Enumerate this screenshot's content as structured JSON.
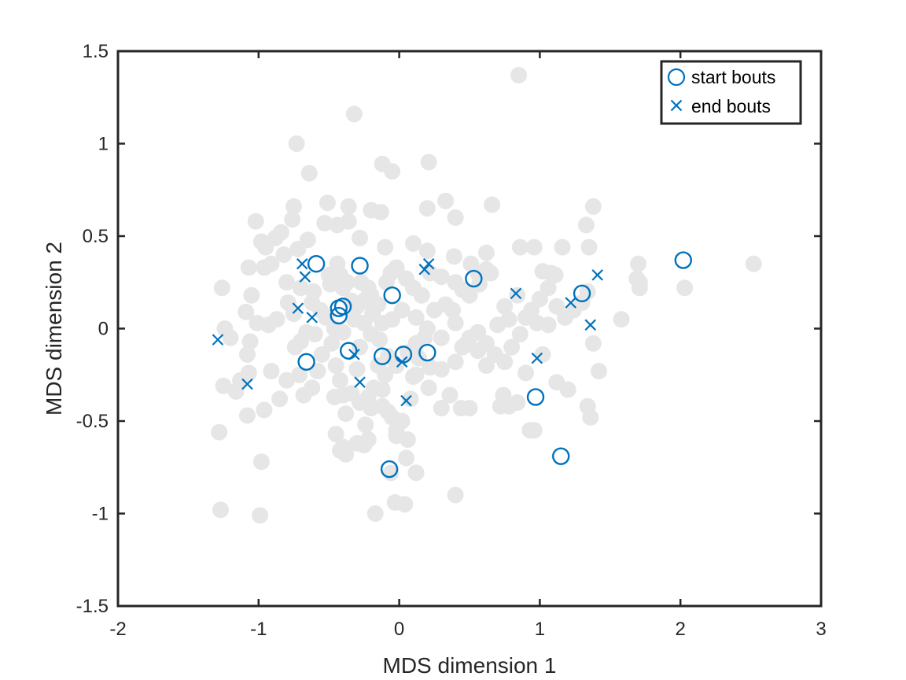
{
  "chart_data": {
    "type": "scatter",
    "title": "",
    "xlabel": "MDS dimension 1",
    "ylabel": "MDS dimension 2",
    "xlim": [
      -2,
      3
    ],
    "ylim": [
      -1.5,
      1.5
    ],
    "x_ticks": [
      "-2",
      "-1",
      "0",
      "1",
      "2",
      "3"
    ],
    "y_ticks": [
      "-1.5",
      "-1",
      "-0.5",
      "0",
      "0.5",
      "1",
      "1.5"
    ],
    "grid": false,
    "legend_position": "top-right",
    "colors": {
      "background_points": "#e6e6e6",
      "highlight": "#0072bd",
      "axes": "#262626"
    },
    "series": [
      {
        "role": "background",
        "marker": "filled-circle",
        "points": [
          [
            0.85,
            1.37
          ],
          [
            -0.32,
            1.16
          ],
          [
            -0.73,
            1.0
          ],
          [
            -0.64,
            0.84
          ],
          [
            -0.12,
            0.89
          ],
          [
            -0.05,
            0.85
          ],
          [
            0.21,
            0.9
          ],
          [
            -0.51,
            0.68
          ],
          [
            -0.36,
            0.66
          ],
          [
            -0.2,
            0.64
          ],
          [
            -0.13,
            0.63
          ],
          [
            -0.75,
            0.66
          ],
          [
            -0.76,
            0.59
          ],
          [
            -1.02,
            0.58
          ],
          [
            0.33,
            0.69
          ],
          [
            0.4,
            0.6
          ],
          [
            0.2,
            0.65
          ],
          [
            0.66,
            0.67
          ],
          [
            1.38,
            0.66
          ],
          [
            1.33,
            0.56
          ],
          [
            -0.44,
            0.56
          ],
          [
            -0.36,
            0.58
          ],
          [
            -0.53,
            0.57
          ],
          [
            -0.65,
            0.48
          ],
          [
            -0.84,
            0.52
          ],
          [
            -0.88,
            0.49
          ],
          [
            -0.98,
            0.47
          ],
          [
            -0.95,
            0.44
          ],
          [
            -0.82,
            0.4
          ],
          [
            -0.72,
            0.43
          ],
          [
            -0.28,
            0.49
          ],
          [
            -0.1,
            0.44
          ],
          [
            0.1,
            0.46
          ],
          [
            0.2,
            0.42
          ],
          [
            0.39,
            0.39
          ],
          [
            0.51,
            0.35
          ],
          [
            0.62,
            0.41
          ],
          [
            0.65,
            0.3
          ],
          [
            0.86,
            0.44
          ],
          [
            0.96,
            0.44
          ],
          [
            1.16,
            0.44
          ],
          [
            1.35,
            0.44
          ],
          [
            1.02,
            0.31
          ],
          [
            1.08,
            0.3
          ],
          [
            1.11,
            0.29
          ],
          [
            1.7,
            0.35
          ],
          [
            1.69,
            0.27
          ],
          [
            1.71,
            0.25
          ],
          [
            1.71,
            0.22
          ],
          [
            2.03,
            0.22
          ],
          [
            2.52,
            0.35
          ],
          [
            1.58,
            0.05
          ],
          [
            -1.26,
            0.22
          ],
          [
            -1.07,
            0.33
          ],
          [
            -0.96,
            0.33
          ],
          [
            -0.91,
            0.35
          ],
          [
            -0.8,
            0.25
          ],
          [
            -0.79,
            0.14
          ],
          [
            -0.75,
            0.08
          ],
          [
            -0.7,
            0.22
          ],
          [
            -0.61,
            0.2
          ],
          [
            -0.5,
            0.29
          ],
          [
            -0.49,
            0.24
          ],
          [
            -0.44,
            0.35
          ],
          [
            -0.42,
            0.29
          ],
          [
            -0.4,
            0.22
          ],
          [
            -0.37,
            0.25
          ],
          [
            -0.34,
            0.15
          ],
          [
            -0.27,
            0.25
          ],
          [
            -0.22,
            0.22
          ],
          [
            -0.2,
            0.18
          ],
          [
            -0.15,
            0.13
          ],
          [
            -0.09,
            0.25
          ],
          [
            -0.06,
            0.3
          ],
          [
            -0.02,
            0.33
          ],
          [
            0.05,
            0.27
          ],
          [
            0.1,
            0.22
          ],
          [
            0.16,
            0.18
          ],
          [
            0.22,
            0.3
          ],
          [
            0.3,
            0.28
          ],
          [
            0.4,
            0.25
          ],
          [
            0.45,
            0.21
          ],
          [
            0.5,
            0.18
          ],
          [
            0.57,
            0.24
          ],
          [
            0.33,
            0.13
          ],
          [
            0.38,
            0.1
          ],
          [
            0.25,
            0.1
          ],
          [
            0.12,
            0.06
          ],
          [
            0.02,
            0.1
          ],
          [
            -0.05,
            0.05
          ],
          [
            -0.12,
            0.03
          ],
          [
            -0.19,
            0.08
          ],
          [
            -0.25,
            0.03
          ],
          [
            -0.32,
            0.05
          ],
          [
            -0.4,
            -0.02
          ],
          [
            -0.46,
            0.0
          ],
          [
            -0.52,
            0.06
          ],
          [
            -0.56,
            0.1
          ],
          [
            -0.62,
            0.14
          ],
          [
            -0.6,
            -0.03
          ],
          [
            -0.66,
            -0.02
          ],
          [
            -0.7,
            -0.07
          ],
          [
            -0.74,
            -0.1
          ],
          [
            -0.87,
            0.05
          ],
          [
            -0.93,
            0.02
          ],
          [
            -1.01,
            0.03
          ],
          [
            -1.09,
            0.09
          ],
          [
            -1.05,
            0.18
          ],
          [
            -1.2,
            -0.05
          ],
          [
            -1.24,
            0.0
          ],
          [
            -1.06,
            -0.07
          ],
          [
            -1.08,
            -0.14
          ],
          [
            -1.07,
            -0.24
          ],
          [
            -1.13,
            -0.28
          ],
          [
            -1.16,
            -0.34
          ],
          [
            -1.08,
            -0.47
          ],
          [
            -0.96,
            -0.44
          ],
          [
            -0.91,
            -0.23
          ],
          [
            -0.71,
            -0.25
          ],
          [
            -0.68,
            -0.36
          ],
          [
            -0.62,
            -0.32
          ],
          [
            -0.58,
            -0.23
          ],
          [
            -0.55,
            -0.14
          ],
          [
            -0.48,
            -0.08
          ],
          [
            -0.45,
            -0.2
          ],
          [
            -0.42,
            -0.28
          ],
          [
            -0.4,
            -0.36
          ],
          [
            -0.46,
            -0.37
          ],
          [
            -0.38,
            -0.46
          ],
          [
            -0.45,
            -0.57
          ],
          [
            -0.4,
            -0.64
          ],
          [
            -0.38,
            -0.68
          ],
          [
            -0.3,
            -0.62
          ],
          [
            -0.24,
            -0.52
          ],
          [
            -0.22,
            -0.6
          ],
          [
            -0.2,
            -0.43
          ],
          [
            -0.18,
            -0.32
          ],
          [
            -0.15,
            -0.2
          ],
          [
            -0.1,
            -0.25
          ],
          [
            -0.12,
            -0.33
          ],
          [
            -0.08,
            -0.45
          ],
          [
            -0.02,
            -0.58
          ],
          [
            0.06,
            -0.6
          ],
          [
            0.02,
            -0.5
          ],
          [
            0.08,
            -0.38
          ],
          [
            0.12,
            -0.25
          ],
          [
            0.14,
            -0.16
          ],
          [
            0.18,
            -0.05
          ],
          [
            0.22,
            -0.21
          ],
          [
            0.21,
            -0.32
          ],
          [
            0.3,
            -0.43
          ],
          [
            0.36,
            -0.36
          ],
          [
            0.44,
            -0.43
          ],
          [
            0.5,
            -0.43
          ],
          [
            0.4,
            -0.18
          ],
          [
            0.45,
            -0.1
          ],
          [
            0.5,
            -0.05
          ],
          [
            0.56,
            -0.02
          ],
          [
            0.62,
            -0.08
          ],
          [
            0.68,
            -0.14
          ],
          [
            0.75,
            -0.18
          ],
          [
            0.8,
            -0.1
          ],
          [
            0.86,
            -0.03
          ],
          [
            0.9,
            0.06
          ],
          [
            0.94,
            0.1
          ],
          [
            1.0,
            0.16
          ],
          [
            1.06,
            0.22
          ],
          [
            1.12,
            0.12
          ],
          [
            1.18,
            0.06
          ],
          [
            1.24,
            0.1
          ],
          [
            1.3,
            0.14
          ],
          [
            1.34,
            0.2
          ],
          [
            1.38,
            -0.08
          ],
          [
            1.42,
            -0.23
          ],
          [
            1.34,
            -0.42
          ],
          [
            1.36,
            -0.48
          ],
          [
            1.2,
            -0.33
          ],
          [
            1.12,
            -0.29
          ],
          [
            1.02,
            -0.14
          ],
          [
            1.06,
            0.02
          ],
          [
            0.98,
            0.03
          ],
          [
            0.9,
            -0.24
          ],
          [
            0.84,
            -0.4
          ],
          [
            0.74,
            -0.36
          ],
          [
            0.72,
            -0.42
          ],
          [
            0.78,
            -0.42
          ],
          [
            0.96,
            -0.55
          ],
          [
            0.93,
            -0.55
          ],
          [
            0.62,
            -0.2
          ],
          [
            0.56,
            -0.12
          ],
          [
            0.48,
            -0.08
          ],
          [
            0.4,
            0.03
          ],
          [
            0.3,
            -0.05
          ],
          [
            0.2,
            0.0
          ],
          [
            0.12,
            -0.08
          ],
          [
            0.06,
            -0.13
          ],
          [
            -0.02,
            -0.2
          ],
          [
            -0.08,
            -0.15
          ],
          [
            -0.14,
            -0.06
          ],
          [
            -0.2,
            -0.03
          ],
          [
            -0.28,
            -0.1
          ],
          [
            -0.3,
            -0.22
          ],
          [
            -0.34,
            -0.35
          ],
          [
            -0.28,
            -0.4
          ],
          [
            -0.22,
            -0.37
          ],
          [
            -0.12,
            -0.42
          ],
          [
            -0.05,
            -0.48
          ],
          [
            -0.02,
            -0.55
          ],
          [
            0.05,
            -0.7
          ],
          [
            0.12,
            -0.78
          ],
          [
            0.4,
            -0.9
          ],
          [
            -0.17,
            -1.0
          ],
          [
            -0.03,
            -0.94
          ],
          [
            0.04,
            -0.95
          ],
          [
            -0.06,
            -0.78
          ],
          [
            -0.25,
            -0.63
          ],
          [
            -0.42,
            -0.66
          ],
          [
            -0.98,
            -0.72
          ],
          [
            -1.28,
            -0.56
          ],
          [
            -1.27,
            -0.98
          ],
          [
            -0.99,
            -1.01
          ],
          [
            -1.25,
            -0.31
          ],
          [
            -0.8,
            -0.28
          ],
          [
            -0.85,
            -0.38
          ],
          [
            0.1,
            -0.26
          ],
          [
            0.3,
            -0.22
          ],
          [
            0.62,
            0.32
          ],
          [
            0.56,
            0.3
          ],
          [
            -0.3,
            0.12
          ],
          [
            -0.25,
            0.15
          ],
          [
            0.84,
            0.18
          ],
          [
            0.75,
            0.12
          ],
          [
            0.78,
            0.05
          ],
          [
            0.7,
            0.02
          ]
        ]
      },
      {
        "name": "start bouts",
        "marker": "open-circle",
        "points": [
          [
            -0.59,
            0.35
          ],
          [
            -0.28,
            0.34
          ],
          [
            -0.43,
            0.11
          ],
          [
            -0.43,
            0.07
          ],
          [
            -0.4,
            0.12
          ],
          [
            -0.05,
            0.18
          ],
          [
            0.53,
            0.27
          ],
          [
            -0.66,
            -0.18
          ],
          [
            -0.36,
            -0.12
          ],
          [
            -0.12,
            -0.15
          ],
          [
            0.03,
            -0.14
          ],
          [
            0.2,
            -0.13
          ],
          [
            -0.07,
            -0.76
          ],
          [
            2.02,
            0.37
          ],
          [
            1.3,
            0.19
          ],
          [
            0.97,
            -0.37
          ],
          [
            1.15,
            -0.69
          ]
        ]
      },
      {
        "name": "end bouts",
        "marker": "x",
        "points": [
          [
            -1.29,
            -0.06
          ],
          [
            -1.08,
            -0.3
          ],
          [
            -0.69,
            0.35
          ],
          [
            -0.67,
            0.28
          ],
          [
            -0.72,
            0.11
          ],
          [
            -0.62,
            0.06
          ],
          [
            -0.32,
            -0.14
          ],
          [
            -0.28,
            -0.29
          ],
          [
            0.02,
            -0.18
          ],
          [
            0.05,
            -0.39
          ],
          [
            0.18,
            0.32
          ],
          [
            0.21,
            0.35
          ],
          [
            0.83,
            0.19
          ],
          [
            0.98,
            -0.16
          ],
          [
            1.22,
            0.14
          ],
          [
            1.41,
            0.29
          ],
          [
            1.36,
            0.02
          ]
        ]
      }
    ]
  }
}
